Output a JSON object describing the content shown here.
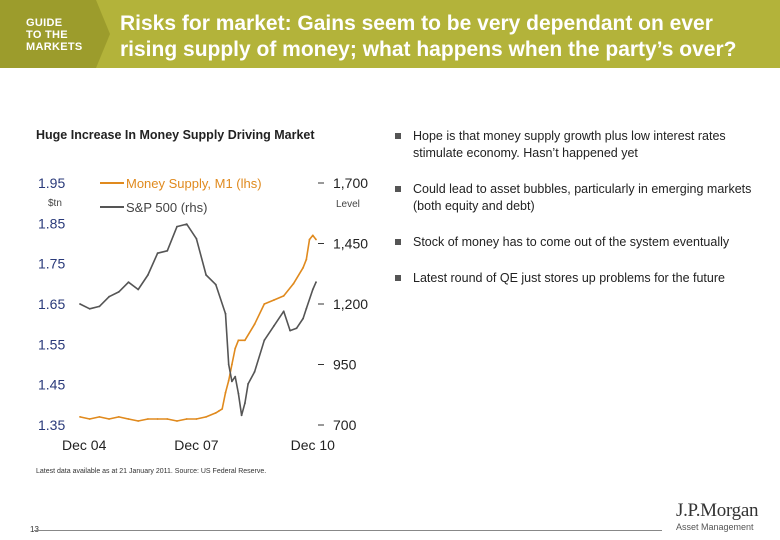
{
  "header": {
    "badge_lines": [
      "GUIDE",
      "TO THE",
      "MARKETS"
    ],
    "title": "Risks for market: Gains seem to be very dependant on ever rising supply of money; what happens when the party’s over?"
  },
  "chart_data": {
    "type": "line",
    "title": "Huge Increase In Money Supply Driving Market",
    "x_ticks": [
      "Dec 04",
      "Dec 07",
      "Dec 10"
    ],
    "left_axis": {
      "label": "$tn",
      "ticks": [
        "1.95",
        "1.85",
        "1.75",
        "1.65",
        "1.55",
        "1.45",
        "1.35"
      ],
      "ylim": [
        1.35,
        1.95
      ]
    },
    "right_axis": {
      "label": "Level",
      "ticks": [
        "1,700",
        "1,450",
        "1,200",
        "950",
        "700"
      ],
      "ylim": [
        700,
        1700
      ]
    },
    "xlim": [
      "2004-12",
      "2011-01"
    ],
    "series": [
      {
        "name": "Money Supply, M1 (lhs)",
        "axis": "left",
        "color": "#e08a1e",
        "x": [
          "2004-12",
          "2005-03",
          "2005-06",
          "2005-09",
          "2005-12",
          "2006-03",
          "2006-06",
          "2006-09",
          "2006-12",
          "2007-03",
          "2007-06",
          "2007-09",
          "2007-12",
          "2008-03",
          "2008-06",
          "2008-07",
          "2008-08",
          "2008-09",
          "2008-10",
          "2008-11",
          "2008-12",
          "2009-01",
          "2009-03",
          "2009-06",
          "2009-09",
          "2009-12",
          "2010-03",
          "2010-06",
          "2010-09",
          "2010-10",
          "2010-11",
          "2010-12",
          "2011-01"
        ],
        "values": [
          1.37,
          1.365,
          1.37,
          1.365,
          1.37,
          1.365,
          1.36,
          1.365,
          1.365,
          1.365,
          1.36,
          1.365,
          1.365,
          1.37,
          1.38,
          1.385,
          1.39,
          1.43,
          1.46,
          1.5,
          1.54,
          1.56,
          1.56,
          1.6,
          1.65,
          1.66,
          1.67,
          1.7,
          1.74,
          1.76,
          1.81,
          1.82,
          1.81
        ]
      },
      {
        "name": "S&P 500 (rhs)",
        "axis": "right",
        "color": "#555555",
        "x": [
          "2004-12",
          "2005-03",
          "2005-06",
          "2005-09",
          "2005-12",
          "2006-03",
          "2006-06",
          "2006-09",
          "2006-12",
          "2007-03",
          "2007-06",
          "2007-09",
          "2007-12",
          "2008-03",
          "2008-06",
          "2008-09",
          "2008-10",
          "2008-11",
          "2008-12",
          "2009-01",
          "2009-02",
          "2009-03",
          "2009-04",
          "2009-06",
          "2009-09",
          "2009-12",
          "2010-03",
          "2010-05",
          "2010-07",
          "2010-09",
          "2010-10",
          "2010-12",
          "2011-01"
        ],
        "values": [
          1200,
          1180,
          1190,
          1230,
          1250,
          1290,
          1260,
          1320,
          1410,
          1420,
          1520,
          1530,
          1470,
          1320,
          1280,
          1160,
          950,
          880,
          900,
          830,
          740,
          790,
          870,
          920,
          1050,
          1110,
          1170,
          1090,
          1100,
          1140,
          1180,
          1260,
          1290
        ]
      }
    ],
    "grid": false,
    "legend": "top-left"
  },
  "bullets": [
    "Hope is that money supply growth plus low interest rates stimulate economy. Hasn’t happened yet",
    "Could lead to asset bubbles, particularly in emerging markets (both equity and debt)",
    "Stock of money has to come out of the system eventually",
    "Latest round of QE just stores up problems for the future"
  ],
  "footnote": "Latest data available as at 21 January 2011. Source: US Federal Reserve.",
  "page_number": "13",
  "logo": {
    "main": "J.P.Morgan",
    "sub": "Asset Management"
  },
  "colors": {
    "brand_bar": "#b3b33a",
    "m1_line": "#e08a1e",
    "sp500_line": "#555555"
  }
}
